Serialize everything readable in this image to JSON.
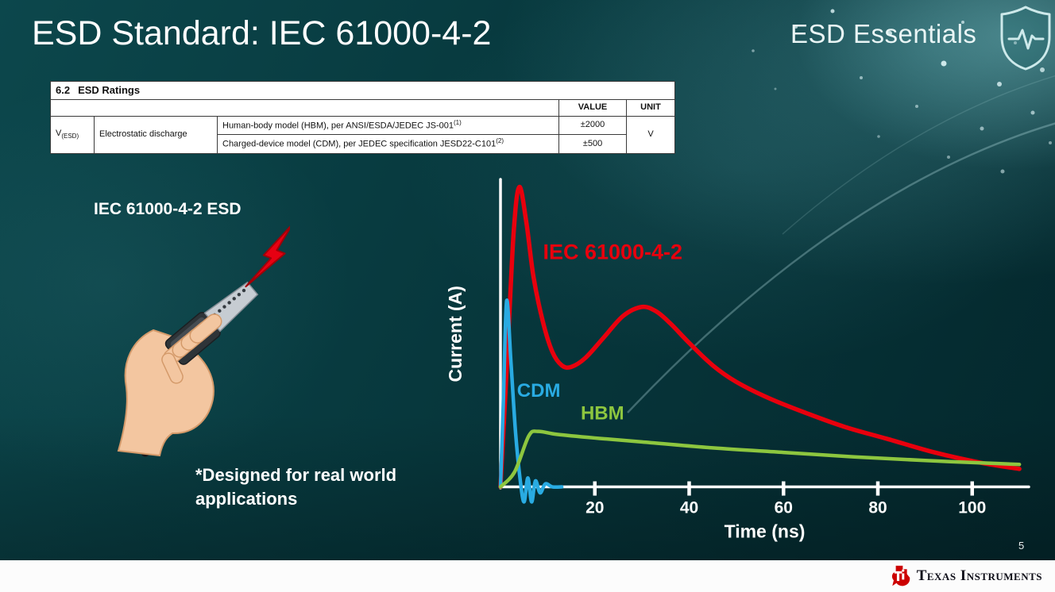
{
  "slide": {
    "title": "ESD Standard: IEC 61000-4-2",
    "series_brand": "ESD Essentials",
    "page_number": "5"
  },
  "ratings_table": {
    "section_number": "6.2",
    "section_title": "ESD Ratings",
    "headers": {
      "value": "VALUE",
      "unit": "UNIT"
    },
    "parameter": {
      "symbol": "V",
      "symbol_sub": "(ESD)",
      "name": "Electrostatic discharge"
    },
    "rows": [
      {
        "description": "Human-body model (HBM), per ANSI/ESDA/JEDEC JS-001",
        "footnote": "(1)",
        "value": "±2000"
      },
      {
        "description": "Charged-device model (CDM), per JEDEC specification JESD22-C101",
        "footnote": "(2)",
        "value": "±500"
      }
    ],
    "unit": "V"
  },
  "illustration": {
    "caption": "IEC 61000-4-2 ESD",
    "note": "*Designed for real world applications"
  },
  "footer": {
    "logo_text": "Texas Instruments",
    "logo_color": "#cc0000"
  },
  "colors": {
    "axis": "#ffffff",
    "bolt_red": "#e60012",
    "background_teal": "#07383d"
  },
  "chart_data": {
    "type": "line",
    "title": "",
    "xlabel": "Time (ns)",
    "ylabel": "Current (A)",
    "xlim": [
      0,
      112
    ],
    "ylim": [
      -0.07,
      1.02
    ],
    "x_ticks": [
      20,
      40,
      60,
      80,
      100
    ],
    "grid": false,
    "legend_position": "inline-labels",
    "axis_color": "#ffffff",
    "series": [
      {
        "name": "IEC 61000-4-2",
        "color": "#e8000d",
        "stroke_width": 5.5,
        "label_size": 27,
        "label_pos": [
          9,
          0.76
        ],
        "x": [
          0,
          1.5,
          2.8,
          4,
          5.5,
          7,
          9,
          11,
          13,
          15,
          18,
          22,
          26,
          30,
          33,
          36,
          40,
          45,
          50,
          57,
          65,
          73,
          82,
          92,
          102,
          110
        ],
        "y": [
          0,
          0.45,
          0.85,
          1.0,
          0.88,
          0.7,
          0.55,
          0.45,
          0.405,
          0.4,
          0.43,
          0.5,
          0.57,
          0.6,
          0.585,
          0.545,
          0.48,
          0.405,
          0.35,
          0.295,
          0.245,
          0.2,
          0.16,
          0.115,
          0.08,
          0.06
        ]
      },
      {
        "name": "CDM",
        "color": "#29abe2",
        "stroke_width": 4.5,
        "label_size": 24,
        "label_pos": [
          3.5,
          0.3
        ],
        "x": [
          0,
          0.6,
          1.3,
          2.2,
          3.2,
          4.2,
          5.0,
          5.8,
          6.6,
          7.4,
          8.4,
          9.5,
          11,
          13
        ],
        "y": [
          0,
          0.28,
          0.62,
          0.42,
          0.18,
          0.02,
          -0.05,
          0.03,
          -0.05,
          0.02,
          -0.02,
          0.01,
          0,
          0
        ]
      },
      {
        "name": "HBM",
        "color": "#8dc63f",
        "stroke_width": 4.5,
        "label_size": 24,
        "label_pos": [
          17,
          0.225
        ],
        "x": [
          0,
          3,
          6,
          8,
          12,
          20,
          30,
          45,
          60,
          75,
          90,
          105,
          110
        ],
        "y": [
          0,
          0.05,
          0.17,
          0.185,
          0.175,
          0.163,
          0.15,
          0.13,
          0.115,
          0.1,
          0.088,
          0.078,
          0.075
        ]
      }
    ]
  }
}
